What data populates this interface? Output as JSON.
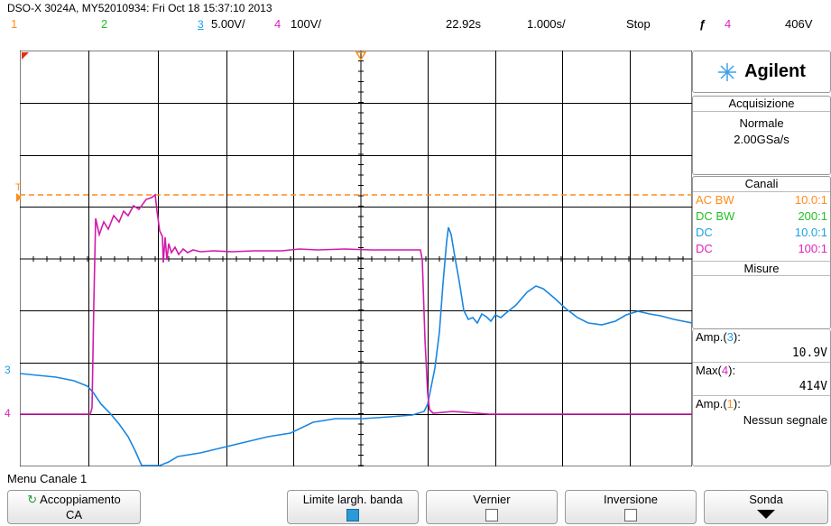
{
  "header": {
    "title": "DSO-X 3024A, MY52010934: Fri Oct 18 15:37:10 2013",
    "ch1_num": "1",
    "ch2_num": "2",
    "ch3_num": "3",
    "ch3_scale": "5.00V/",
    "ch4_num": "4",
    "ch4_scale": "100V/",
    "time_delay": "22.92s",
    "time_scale": "1.000s/",
    "run_state": "Stop",
    "trigger_icon": "trigger-edge-rising",
    "trigger_source": "4",
    "trigger_level": "406V"
  },
  "panel": {
    "brand": "Agilent",
    "acq_title": "Acquisizione",
    "acq_mode": "Normale",
    "acq_rate": "2.00GSa/s",
    "channels_title": "Canali",
    "channels": [
      {
        "coupling": "AC BW",
        "ratio": "10.0:1",
        "color": "#ff8c1a"
      },
      {
        "coupling": "DC BW",
        "ratio": "200:1",
        "color": "#22c022"
      },
      {
        "coupling": "DC",
        "ratio": "10.0:1",
        "color": "#1aa0e6"
      },
      {
        "coupling": "DC",
        "ratio": "100:1",
        "color": "#e020c0"
      }
    ],
    "measures_title": "Misure",
    "measures": [
      {
        "label_pre": "Amp.(",
        "chan": "3",
        "label_post": "):",
        "value": "10.9V",
        "chan_color": "#1aa0e6"
      },
      {
        "label_pre": "Max(",
        "chan": "4",
        "label_post": "):",
        "value": "414V",
        "chan_color": "#e020c0"
      },
      {
        "label_pre": "Amp.(",
        "chan": "1",
        "label_post": "):",
        "value": "Nessun segnale",
        "chan_color": "#ff8c1a"
      }
    ]
  },
  "markers": {
    "trigger_T": "T",
    "ch3": "3",
    "ch4": "4"
  },
  "menu": {
    "title": "Menu Canale 1",
    "softkeys": [
      {
        "label": "Accoppiamento",
        "value": "CA"
      },
      {
        "label": "Limite largh. banda",
        "value": ""
      },
      {
        "label": "Vernier",
        "value": ""
      },
      {
        "label": "Inversione",
        "value": ""
      },
      {
        "label": "Sonda",
        "value": ""
      }
    ]
  },
  "colors": {
    "ch1": "#ff8c1a",
    "ch2": "#22c022",
    "ch3": "#1a86e0",
    "ch4": "#d21aaa",
    "brand_accent": "#3aa0e8"
  }
}
